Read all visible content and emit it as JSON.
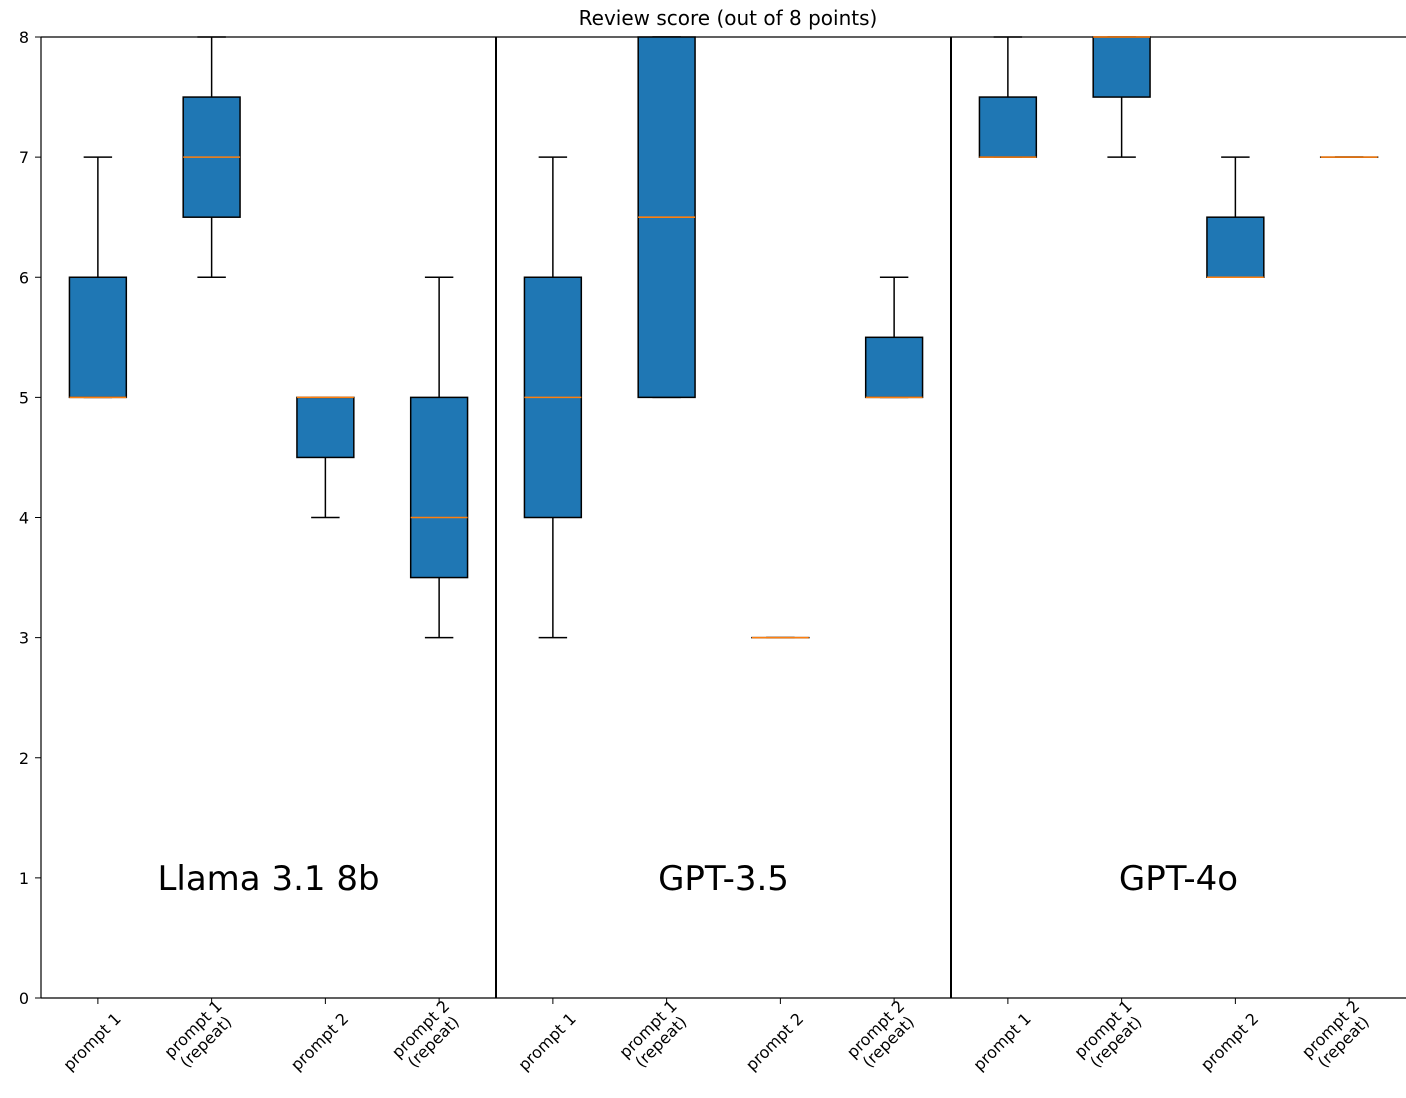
{
  "chart_data": {
    "type": "box",
    "title": "Review score (out of 8 points)",
    "ylim": [
      0,
      8
    ],
    "yticks": [
      0,
      1,
      2,
      3,
      4,
      5,
      6,
      7,
      8
    ],
    "grid": false,
    "legend": "none",
    "colors": {
      "box_fill": "#1f77b4",
      "median": "#ff7f0e",
      "edge": "#000000"
    },
    "categories": [
      "prompt 1",
      "prompt 1\n(repeat)",
      "prompt 2",
      "prompt 2\n(repeat)"
    ],
    "groups": [
      {
        "name": "Llama 3.1 8b",
        "boxes": [
          {
            "label": "prompt 1",
            "whislo": 5,
            "q1": 5,
            "med": 5,
            "q3": 6,
            "whishi": 7
          },
          {
            "label": "prompt 1\n(repeat)",
            "whislo": 6,
            "q1": 6.5,
            "med": 7,
            "q3": 7.5,
            "whishi": 8
          },
          {
            "label": "prompt 2",
            "whislo": 4,
            "q1": 4.5,
            "med": 5,
            "q3": 5,
            "whishi": 5
          },
          {
            "label": "prompt 2\n(repeat)",
            "whislo": 3,
            "q1": 3.5,
            "med": 4,
            "q3": 5,
            "whishi": 6
          }
        ]
      },
      {
        "name": "GPT-3.5",
        "boxes": [
          {
            "label": "prompt 1",
            "whislo": 3,
            "q1": 4,
            "med": 5,
            "q3": 6,
            "whishi": 7
          },
          {
            "label": "prompt 1\n(repeat)",
            "whislo": 5,
            "q1": 5,
            "med": 6.5,
            "q3": 8,
            "whishi": 8
          },
          {
            "label": "prompt 2",
            "whislo": 3,
            "q1": 3,
            "med": 3,
            "q3": 3,
            "whishi": 3
          },
          {
            "label": "prompt 2\n(repeat)",
            "whislo": 5,
            "q1": 5,
            "med": 5,
            "q3": 5.5,
            "whishi": 6
          }
        ]
      },
      {
        "name": "GPT-4o",
        "boxes": [
          {
            "label": "prompt 1",
            "whislo": 7,
            "q1": 7,
            "med": 7,
            "q3": 7.5,
            "whishi": 8
          },
          {
            "label": "prompt 1\n(repeat)",
            "whislo": 7,
            "q1": 7.5,
            "med": 8,
            "q3": 8,
            "whishi": 8
          },
          {
            "label": "prompt 2",
            "whislo": 6,
            "q1": 6,
            "med": 6,
            "q3": 6.5,
            "whishi": 7
          },
          {
            "label": "prompt 2\n(repeat)",
            "whislo": 7,
            "q1": 7,
            "med": 7,
            "q3": 7,
            "whishi": 7
          }
        ]
      }
    ]
  }
}
